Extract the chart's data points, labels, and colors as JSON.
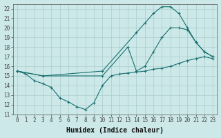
{
  "xlabel": "Humidex (Indice chaleur)",
  "xlim": [
    -0.5,
    23.5
  ],
  "ylim": [
    11,
    22.5
  ],
  "xticks": [
    0,
    1,
    2,
    3,
    4,
    5,
    6,
    7,
    8,
    9,
    10,
    11,
    12,
    13,
    14,
    15,
    16,
    17,
    18,
    19,
    20,
    21,
    22,
    23
  ],
  "yticks": [
    11,
    12,
    13,
    14,
    15,
    16,
    17,
    18,
    19,
    20,
    21,
    22
  ],
  "background_color": "#cce8e8",
  "grid_color": "#aacccc",
  "line_color": "#1a7070",
  "lines": [
    {
      "x": [
        0,
        1,
        2,
        3,
        4,
        5,
        6,
        7,
        8,
        9,
        10,
        11,
        12,
        13,
        14,
        15,
        16,
        17,
        18,
        19,
        20,
        21,
        22,
        23
      ],
      "y": [
        15.5,
        15.2,
        14.5,
        14.2,
        13.8,
        12.7,
        12.3,
        11.8,
        11.5,
        12.2,
        14.0,
        15.0,
        15.2,
        15.3,
        15.4,
        15.5,
        15.7,
        15.8,
        16.0,
        16.3,
        16.6,
        16.8,
        17.0,
        16.8
      ]
    },
    {
      "x": [
        0,
        3,
        10,
        13,
        14,
        15,
        16,
        17,
        18,
        19,
        20,
        21,
        22,
        23
      ],
      "y": [
        15.5,
        15.0,
        15.0,
        18.0,
        15.5,
        16.0,
        17.5,
        19.0,
        20.0,
        20.0,
        19.8,
        18.5,
        17.5,
        17.0
      ]
    },
    {
      "x": [
        0,
        3,
        10,
        14,
        15,
        16,
        17,
        18,
        19,
        20,
        21,
        22,
        23
      ],
      "y": [
        15.5,
        15.0,
        15.5,
        19.5,
        20.5,
        21.5,
        22.2,
        22.2,
        21.5,
        20.0,
        18.5,
        17.5,
        17.0
      ]
    }
  ],
  "tick_fontsize": 5.5,
  "label_fontsize": 7
}
